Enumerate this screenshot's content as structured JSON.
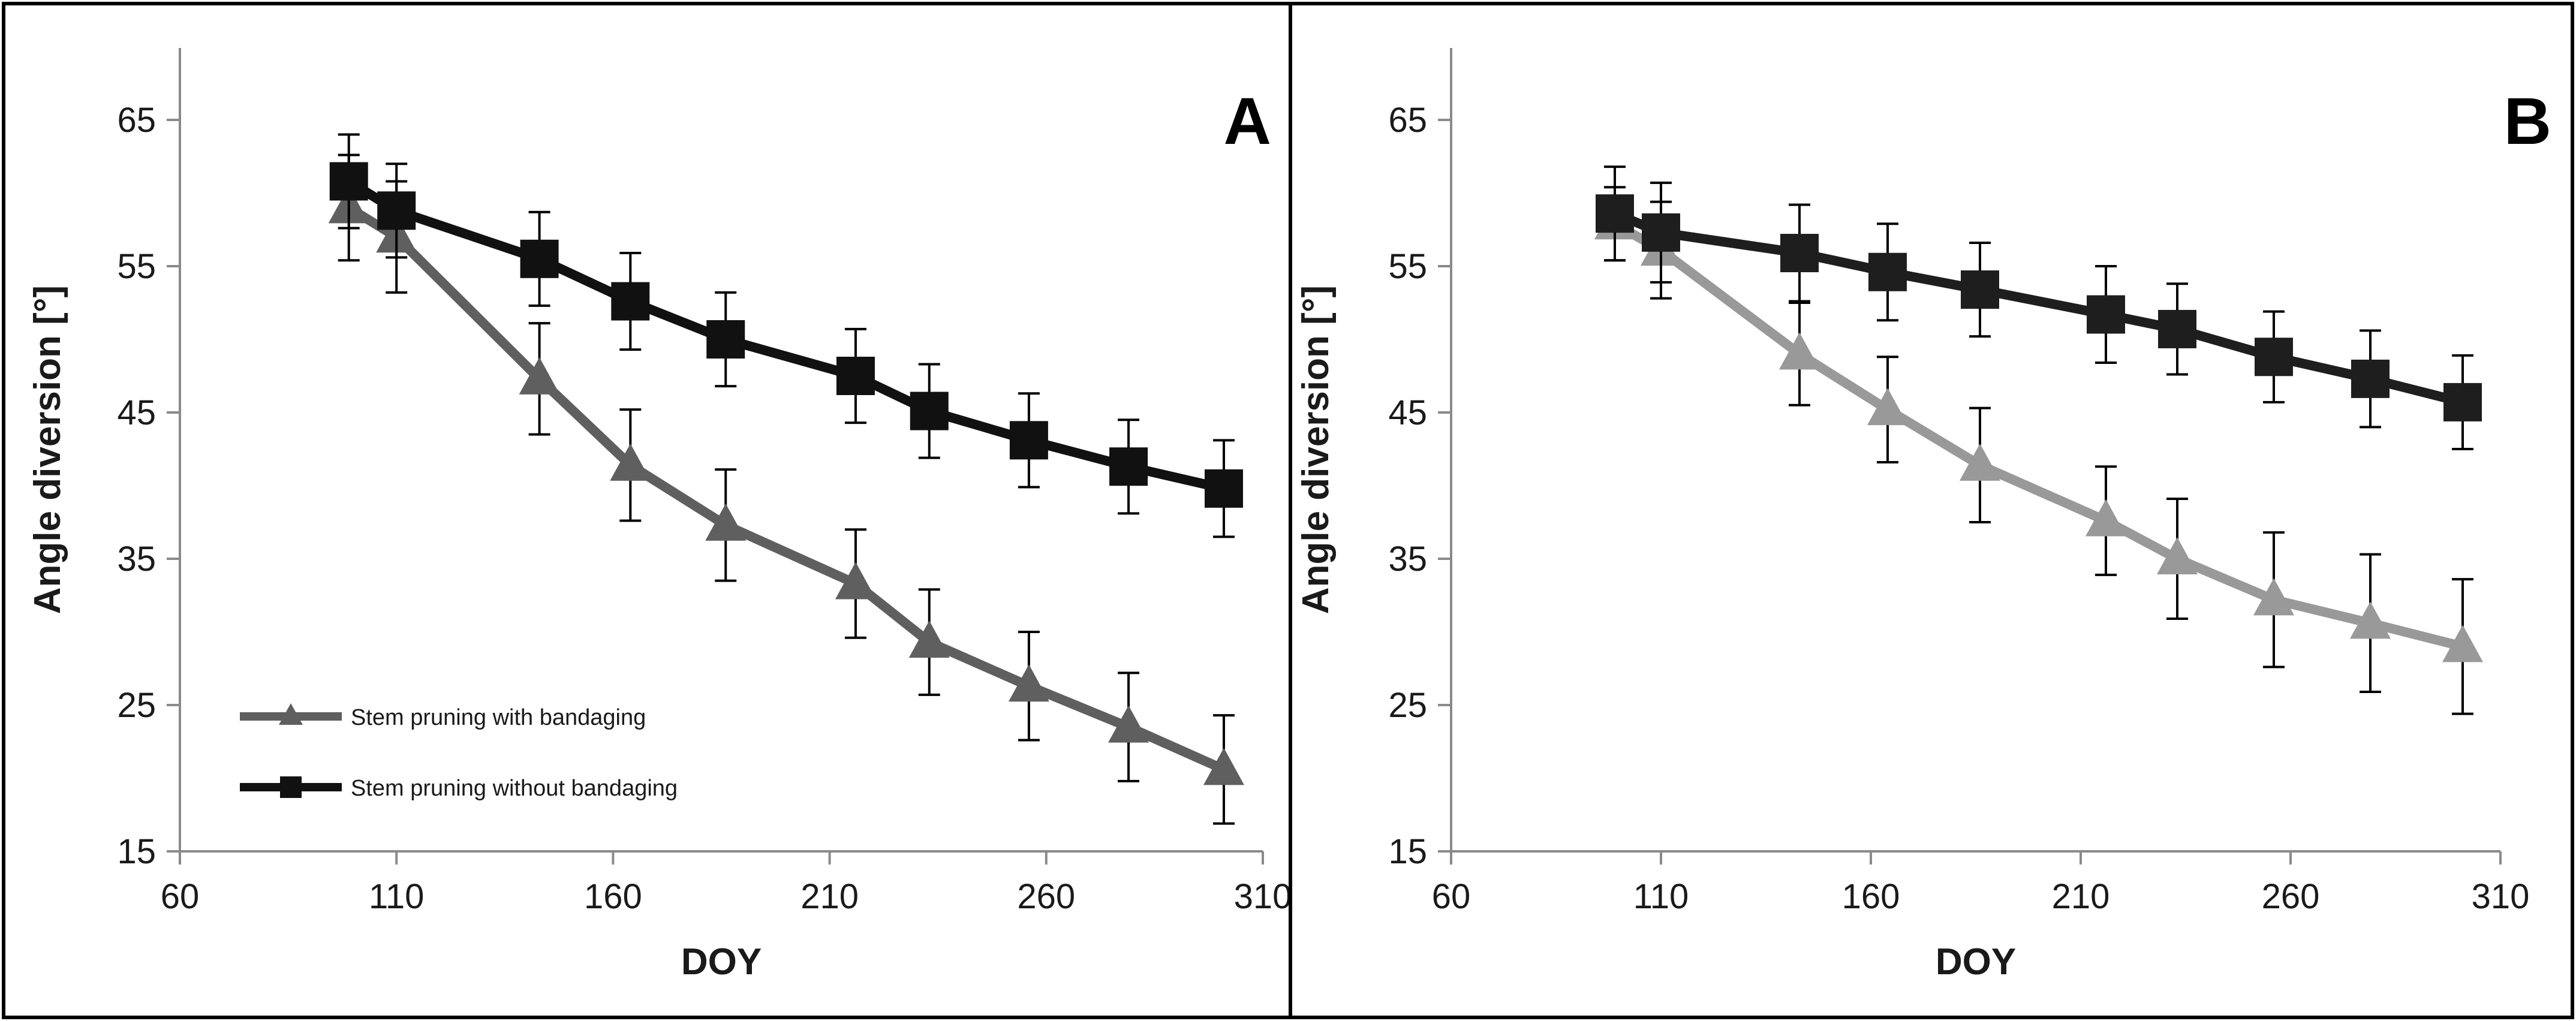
{
  "chart_data": [
    {
      "type": "line",
      "panel_label": "A",
      "xlabel": "DOY",
      "ylabel": "Angle diversion [°]",
      "xlim": [
        60,
        310
      ],
      "ylim": [
        15,
        70
      ],
      "xticks": [
        60,
        110,
        160,
        210,
        260,
        310
      ],
      "yticks": [
        15,
        25,
        35,
        45,
        55,
        65
      ],
      "legend": {
        "placement": "bottom-left",
        "entries": [
          "Stem pruning with bandaging",
          "Stem pruning without bandaging"
        ]
      },
      "series": [
        {
          "name": "Stem pruning with bandaging",
          "marker": "triangle",
          "color": "#5f5f5f",
          "x": [
            99,
            110,
            143,
            164,
            186,
            216,
            233,
            256,
            279,
            301
          ],
          "y": [
            59,
            57,
            47.3,
            41.4,
            37.3,
            33.3,
            29.3,
            26.3,
            23.5,
            20.6
          ],
          "err": [
            3.6,
            3.8,
            3.8,
            3.8,
            3.8,
            3.7,
            3.6,
            3.7,
            3.7,
            3.7
          ]
        },
        {
          "name": "Stem pruning without bandaging",
          "marker": "square",
          "color": "#111111",
          "x": [
            99,
            110,
            143,
            164,
            186,
            216,
            233,
            256,
            279,
            301
          ],
          "y": [
            60.8,
            58.8,
            55.5,
            52.6,
            50,
            47.5,
            45.1,
            43.1,
            41.3,
            39.8
          ],
          "err": [
            3.2,
            3.2,
            3.2,
            3.3,
            3.2,
            3.2,
            3.2,
            3.2,
            3.2,
            3.3
          ]
        }
      ]
    },
    {
      "type": "line",
      "panel_label": "B",
      "xlabel": "DOY",
      "ylabel": "Angle diversion [°]",
      "xlim": [
        60,
        310
      ],
      "ylim": [
        15,
        70
      ],
      "xticks": [
        60,
        110,
        160,
        210,
        260,
        310
      ],
      "yticks": [
        15,
        25,
        35,
        45,
        55,
        65
      ],
      "series": [
        {
          "name": "Stem pruning with bandaging",
          "marker": "triangle",
          "color": "#999999",
          "x": [
            99,
            110,
            143,
            164,
            186,
            216,
            233,
            256,
            279,
            301
          ],
          "y": [
            57.9,
            56.1,
            49,
            45.2,
            41.4,
            37.6,
            35,
            32.2,
            30.6,
            29
          ],
          "err": [
            2.5,
            3.3,
            3.5,
            3.6,
            3.9,
            3.7,
            4.1,
            4.6,
            4.7,
            4.6
          ]
        },
        {
          "name": "Stem pruning without bandaging",
          "marker": "square",
          "color": "#1e1e1e",
          "x": [
            99,
            110,
            143,
            164,
            186,
            216,
            233,
            256,
            279,
            301
          ],
          "y": [
            58.6,
            57.3,
            55.9,
            54.6,
            53.4,
            51.7,
            50.7,
            48.8,
            47.3,
            45.7
          ],
          "err": [
            3.2,
            3.4,
            3.3,
            3.3,
            3.2,
            3.3,
            3.1,
            3.1,
            3.3,
            3.2
          ]
        }
      ]
    }
  ]
}
